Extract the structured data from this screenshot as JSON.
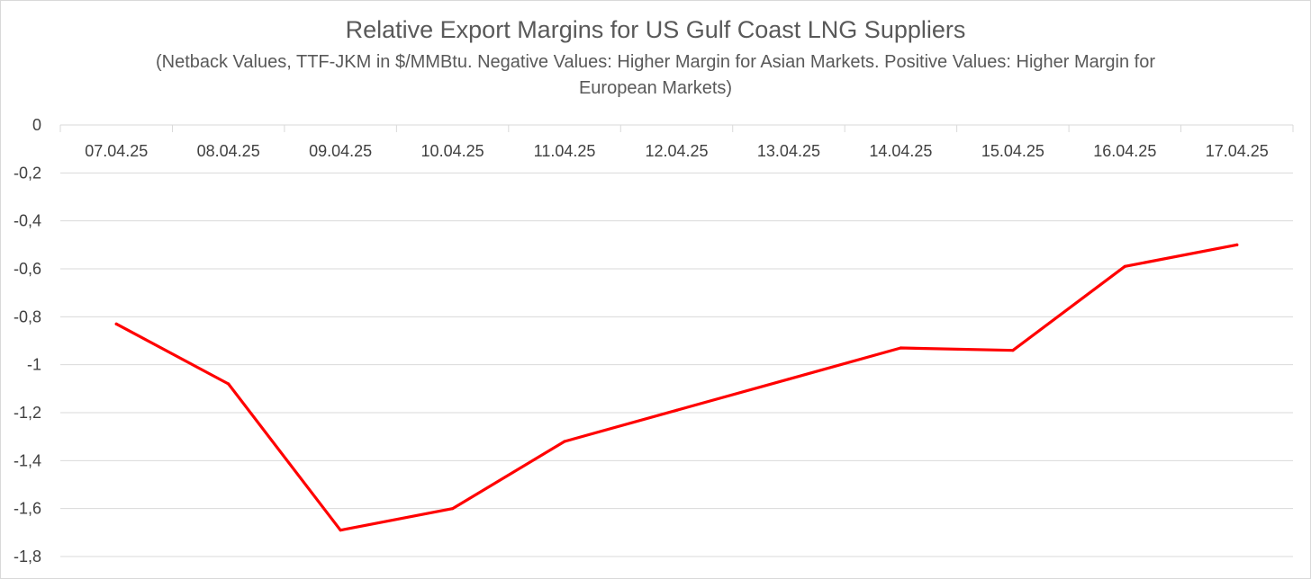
{
  "chart_data": {
    "type": "line",
    "title": "Relative Export Margins for US Gulf Coast LNG Suppliers",
    "subtitle": "(Netback Values, TTF-JKM in $/MMBtu. Negative Values: Higher Margin for Asian Markets. Positive Values: Higher Margin for European Markets)",
    "xlabel": "",
    "ylabel": "",
    "categories": [
      "07.04.25",
      "08.04.25",
      "09.04.25",
      "10.04.25",
      "11.04.25",
      "12.04.25",
      "13.04.25",
      "14.04.25",
      "15.04.25",
      "16.04.25",
      "17.04.25"
    ],
    "series": [
      {
        "values": [
          -0.83,
          -1.08,
          -1.69,
          -1.6,
          -1.32,
          -1.19,
          -1.06,
          -0.93,
          -0.94,
          -0.59,
          -0.5
        ],
        "color": "#ff0000"
      }
    ],
    "ylim": [
      -1.8,
      0
    ],
    "yticks": [
      0,
      -0.2,
      -0.4,
      -0.6,
      -0.8,
      -1,
      -1.2,
      -1.4,
      -1.6,
      -1.8
    ],
    "ytick_labels": [
      "0",
      "-0,2",
      "-0,4",
      "-0,6",
      "-0,8",
      "-1",
      "-1,2",
      "-1,4",
      "-1,6",
      "-1,8"
    ],
    "x_axis_position": "top",
    "grid": true,
    "gridline_color": "#d9d9d9",
    "legend": "none"
  }
}
